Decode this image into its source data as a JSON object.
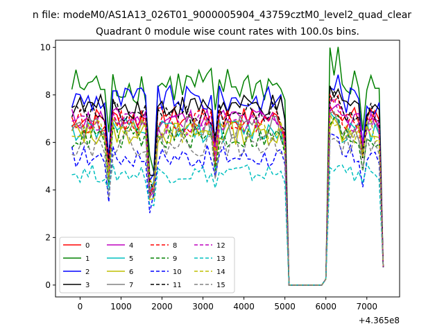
{
  "figure": {
    "suptitle": "n file: modeM0/AS1A13_026T01_9000005904_43759cztM0_level2_quad_clear",
    "title": "Quadrant 0 module wise count rates with 100.0s bins."
  },
  "chart_data": {
    "type": "line",
    "title": "Quadrant 0 module wise count rates with 100.0s bins.",
    "xlabel": "",
    "ylabel": "",
    "x_offset_label": "+4.365e8",
    "xlim": [
      -600,
      7800
    ],
    "ylim": [
      -0.5,
      10.3
    ],
    "xticks": [
      0,
      1000,
      2000,
      3000,
      4000,
      5000,
      6000,
      7000
    ],
    "yticks": [
      0,
      2,
      4,
      6,
      8,
      10
    ],
    "grid": false,
    "legend_position": "lower-left",
    "x": [],
    "series": [
      {
        "name": "0",
        "color": "#ff0000",
        "dash": "solid",
        "level": 7.0,
        "amp": 0.5,
        "dip": 2.7
      },
      {
        "name": "1",
        "color": "#008000",
        "dash": "solid",
        "level": 8.4,
        "amp": 0.8,
        "dip": 3.2
      },
      {
        "name": "2",
        "color": "#0000ff",
        "dash": "solid",
        "level": 7.8,
        "amp": 0.6,
        "dip": 3.0
      },
      {
        "name": "3",
        "color": "#000000",
        "dash": "solid",
        "level": 7.5,
        "amp": 0.5,
        "dip": 3.0
      },
      {
        "name": "4",
        "color": "#bf00bf",
        "dash": "solid",
        "level": 7.0,
        "amp": 0.5,
        "dip": 2.9
      },
      {
        "name": "5",
        "color": "#00bfbf",
        "dash": "solid",
        "level": 6.5,
        "amp": 0.5,
        "dip": 2.6
      },
      {
        "name": "6",
        "color": "#bfbf00",
        "dash": "solid",
        "level": 6.4,
        "amp": 0.5,
        "dip": 2.4
      },
      {
        "name": "7",
        "color": "#808080",
        "dash": "solid",
        "level": 6.6,
        "amp": 0.5,
        "dip": 2.6
      },
      {
        "name": "8",
        "color": "#ff0000",
        "dash": "dashed",
        "level": 6.9,
        "amp": 0.5,
        "dip": 2.7
      },
      {
        "name": "9",
        "color": "#008000",
        "dash": "dashed",
        "level": 6.2,
        "amp": 0.5,
        "dip": 2.4
      },
      {
        "name": "10",
        "color": "#0000ff",
        "dash": "dashed",
        "level": 5.4,
        "amp": 0.5,
        "dip": 1.9
      },
      {
        "name": "11",
        "color": "#000000",
        "dash": "dashed",
        "level": 7.2,
        "amp": 0.5,
        "dip": 2.8
      },
      {
        "name": "12",
        "color": "#bf00bf",
        "dash": "dashed",
        "level": 6.8,
        "amp": 0.5,
        "dip": 2.6
      },
      {
        "name": "13",
        "color": "#00bfbf",
        "dash": "dashed",
        "level": 4.7,
        "amp": 0.4,
        "dip": 1.3
      },
      {
        "name": "14",
        "color": "#bfbf00",
        "dash": "dashed",
        "level": 6.5,
        "amp": 0.5,
        "dip": 2.5
      },
      {
        "name": "15",
        "color": "#808080",
        "dash": "dashed",
        "level": 5.9,
        "amp": 0.5,
        "dip": 2.2
      }
    ]
  }
}
